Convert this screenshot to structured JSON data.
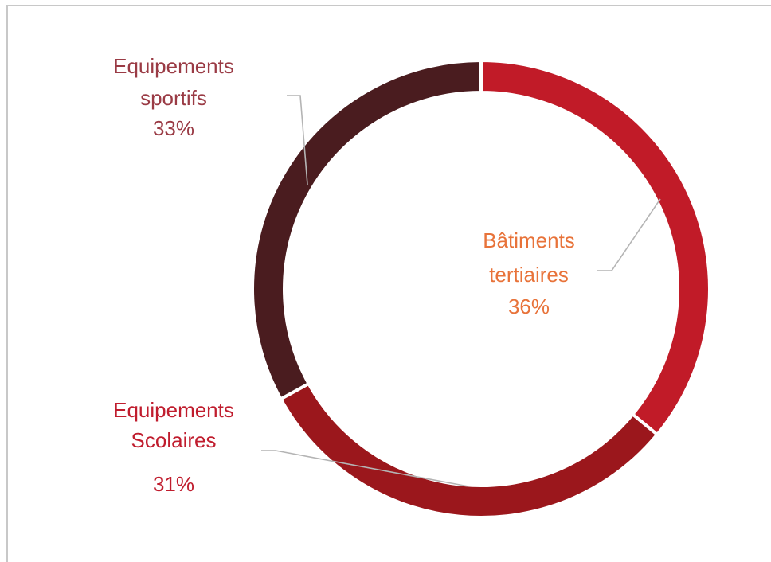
{
  "chart_data": {
    "type": "pie",
    "variant": "donut",
    "categories": [
      "Bâtiments tertiaires",
      "Equipements Scolaires",
      "Equipements sportifs"
    ],
    "values": [
      36,
      31,
      33
    ],
    "unit": "%",
    "slice_colors": [
      "#c11b28",
      "#9b171c",
      "#4a1c1f"
    ],
    "label_colors": [
      "#e8733a",
      "#c01d2e",
      "#9a3b45"
    ],
    "labels": [
      {
        "line1": "Bâtiments",
        "line2": "tertiaires",
        "value": "36%"
      },
      {
        "line1": "Equipements",
        "line2": "Scolaires",
        "value": "31%"
      },
      {
        "line1": "Equipements",
        "line2": "sportifs",
        "value": "33%"
      }
    ],
    "title": "",
    "legend": "none",
    "start_angle": "12 o'clock",
    "direction": "clockwise"
  }
}
